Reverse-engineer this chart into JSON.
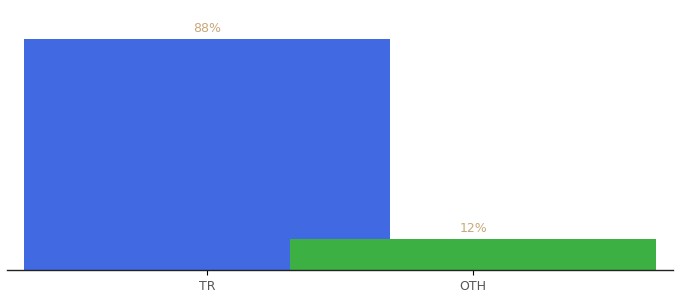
{
  "categories": [
    "TR",
    "OTH"
  ],
  "values": [
    88,
    12
  ],
  "bar_colors": [
    "#4169e1",
    "#3cb043"
  ],
  "label_color": "#c8a87a",
  "label_fontsize": 9,
  "tick_fontsize": 9,
  "background_color": "#ffffff",
  "ylim": [
    0,
    100
  ],
  "bar_width": 0.55,
  "x_positions": [
    0.3,
    0.7
  ],
  "xlim": [
    0.0,
    1.0
  ]
}
